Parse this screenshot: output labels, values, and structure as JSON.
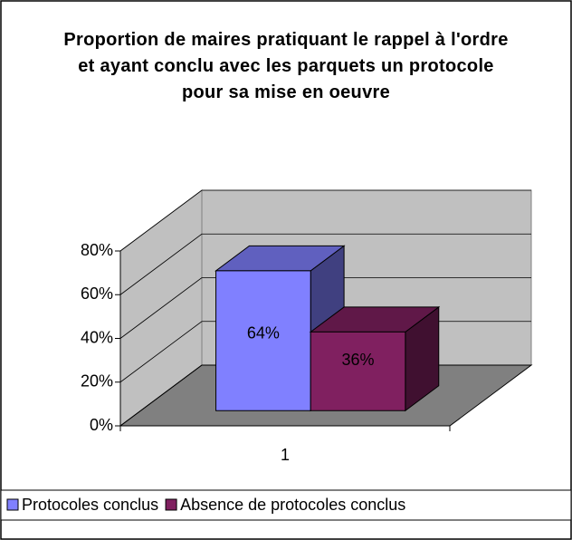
{
  "chart_data": {
    "type": "bar3d",
    "title": "Proportion de maires pratiquant le rappel à l'ordre et ayant conclu avec les parquets un protocole pour sa mise en oeuvre",
    "categories": [
      "1"
    ],
    "series": [
      {
        "name": "Protocoles conclus",
        "color": "#8080ff",
        "values": [
          64
        ],
        "value_labels": [
          "64%"
        ]
      },
      {
        "name": "Absence de protocoles conclus",
        "color": "#802060",
        "values": [
          36
        ],
        "value_labels": [
          "36%"
        ]
      }
    ],
    "ylim": [
      0,
      80
    ],
    "yticks": [
      {
        "value": 0,
        "label": "0%"
      },
      {
        "value": 20,
        "label": "20%"
      },
      {
        "value": 40,
        "label": "40%"
      },
      {
        "value": 60,
        "label": "60%"
      },
      {
        "value": 80,
        "label": "80%"
      }
    ],
    "grid": true,
    "legend": "bottom"
  }
}
